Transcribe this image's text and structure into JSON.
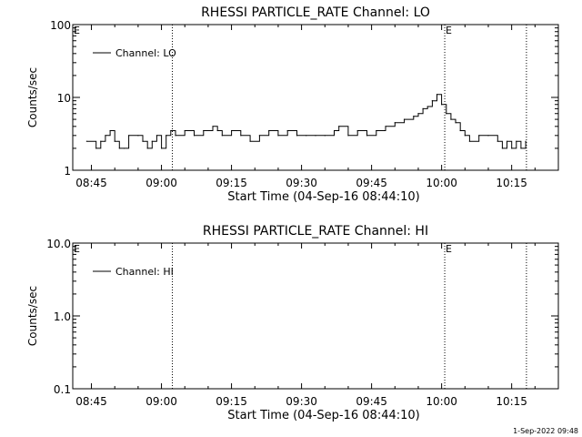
{
  "footer_date": "1-Sep-2022 09:48",
  "chart_data": [
    {
      "type": "line",
      "title": "RHESSI PARTICLE_RATE Channel: LO",
      "xlabel": "Start Time (04-Sep-16 08:44:10)",
      "ylabel": "Counts/sec",
      "xscale": "time",
      "yscale": "log",
      "xlim": [
        "08:41",
        "10:25"
      ],
      "ylim": [
        1,
        100
      ],
      "xticks": [
        "08:45",
        "09:00",
        "09:15",
        "09:30",
        "09:45",
        "10:00",
        "10:15"
      ],
      "yticks": [
        {
          "value": 1,
          "label": "1"
        },
        {
          "value": 10,
          "label": "10"
        },
        {
          "value": 100,
          "label": "100"
        }
      ],
      "vlines": [
        {
          "time": "09:02:20",
          "marker": ""
        },
        {
          "time": "10:00:40",
          "marker": "E"
        },
        {
          "time": "10:18:10",
          "marker": ""
        }
      ],
      "corner_marker": "E",
      "legend": {
        "entries": [
          "Channel: LO"
        ],
        "position": "top-left"
      },
      "series": [
        {
          "name": "Channel: LO",
          "x": [
            "08:44",
            "08:46",
            "08:47",
            "08:48",
            "08:49",
            "08:50",
            "08:51",
            "08:52",
            "08:53",
            "08:55",
            "08:56",
            "08:57",
            "08:58",
            "08:59",
            "09:00",
            "09:01",
            "09:02",
            "09:03",
            "09:05",
            "09:07",
            "09:09",
            "09:11",
            "09:12",
            "09:13",
            "09:15",
            "09:17",
            "09:19",
            "09:21",
            "09:23",
            "09:25",
            "09:27",
            "09:29",
            "09:31",
            "09:33",
            "09:35",
            "09:37",
            "09:38",
            "09:40",
            "09:42",
            "09:44",
            "09:46",
            "09:48",
            "09:50",
            "09:52",
            "09:54",
            "09:55",
            "09:56",
            "09:57",
            "09:58",
            "09:59",
            "10:00",
            "10:01",
            "10:02",
            "10:03",
            "10:04",
            "10:05",
            "10:06",
            "10:08",
            "10:10",
            "10:12",
            "10:13",
            "10:14",
            "10:15",
            "10:16",
            "10:17",
            "10:18"
          ],
          "y": [
            2.5,
            2,
            2.5,
            3,
            3.5,
            2.5,
            2,
            2,
            3,
            3,
            2.5,
            2,
            2.5,
            3,
            2,
            3,
            3.5,
            3,
            3.5,
            3,
            3.5,
            4,
            3.5,
            3,
            3.5,
            3,
            2.5,
            3,
            3.5,
            3,
            3.5,
            3,
            3,
            3,
            3,
            3.5,
            4,
            3,
            3.5,
            3,
            3.5,
            4,
            4.5,
            5,
            5.5,
            6,
            7,
            7.5,
            9,
            11,
            8,
            6,
            5,
            4.5,
            3.5,
            3,
            2.5,
            3,
            3,
            2.5,
            2,
            2.5,
            2,
            2.5,
            2,
            2.5
          ]
        }
      ]
    },
    {
      "type": "line",
      "title": "RHESSI PARTICLE_RATE Channel: HI",
      "xlabel": "Start Time (04-Sep-16 08:44:10)",
      "ylabel": "Counts/sec",
      "xscale": "time",
      "yscale": "log",
      "xlim": [
        "08:41",
        "10:25"
      ],
      "ylim": [
        0.1,
        10
      ],
      "xticks": [
        "08:45",
        "09:00",
        "09:15",
        "09:30",
        "09:45",
        "10:00",
        "10:15"
      ],
      "yticks": [
        {
          "value": 0.1,
          "label": "0.1"
        },
        {
          "value": 1,
          "label": "1.0"
        },
        {
          "value": 10,
          "label": "10.0"
        }
      ],
      "vlines": [
        {
          "time": "09:02:20",
          "marker": ""
        },
        {
          "time": "10:00:40",
          "marker": "E"
        },
        {
          "time": "10:18:10",
          "marker": ""
        }
      ],
      "corner_marker": "E",
      "legend": {
        "entries": [
          "Channel: HI"
        ],
        "position": "top-left"
      },
      "series": [
        {
          "name": "Channel: HI",
          "x": [],
          "y": []
        }
      ]
    }
  ]
}
